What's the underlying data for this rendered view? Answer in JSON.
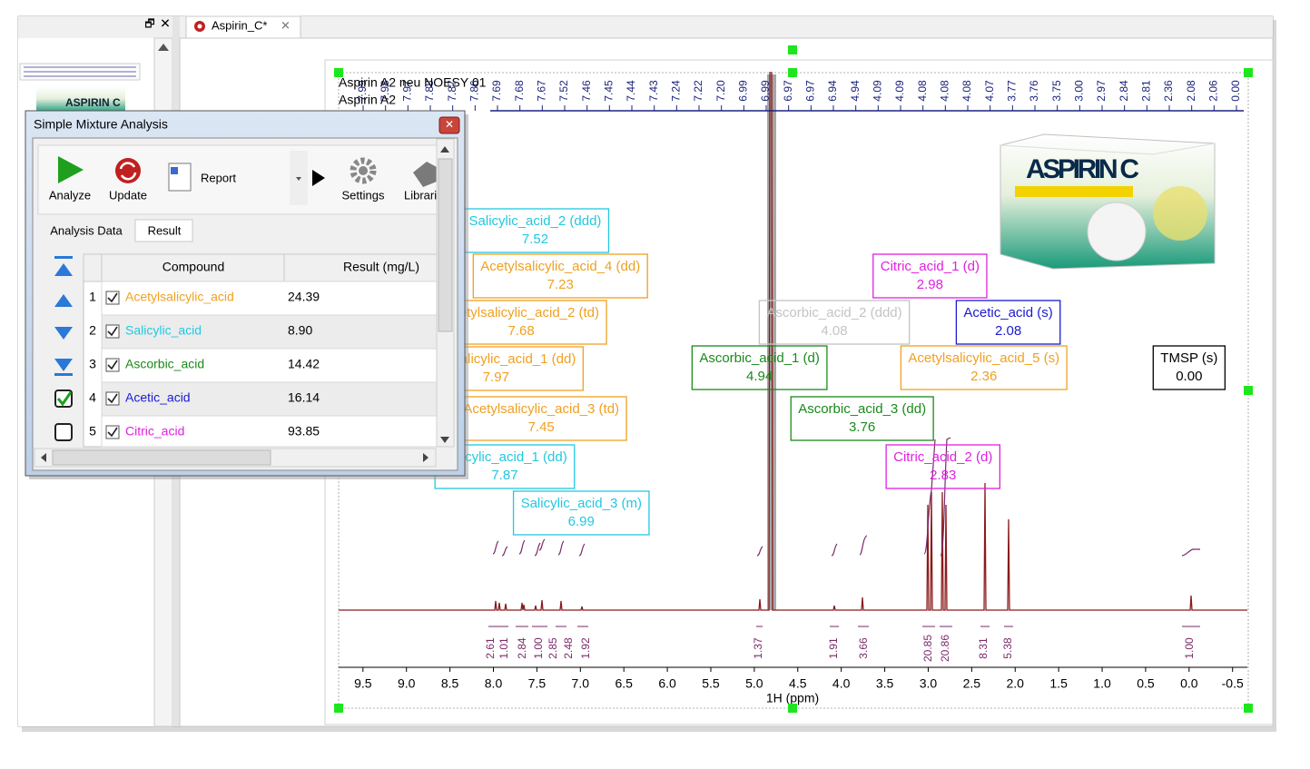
{
  "window": {
    "tab": "Aspirin_C*"
  },
  "dialog": {
    "title": "Simple Mixture Analysis",
    "toolbar": [
      "Analyze",
      "Update",
      "Report",
      "Settings",
      "Librari"
    ],
    "tabs": [
      "Analysis Data",
      "Result"
    ],
    "table": {
      "columns": [
        "Compound",
        "Result (mg/L)"
      ],
      "rows": [
        [
          "1",
          "Acetylsalicylic_acid",
          "24.39"
        ],
        [
          "2",
          "Salicylic_acid",
          "8.90"
        ],
        [
          "3",
          "Ascorbic_acid",
          "14.42"
        ],
        [
          "4",
          "Acetic_acid",
          "16.14"
        ],
        [
          "5",
          "Citric_acid",
          "93.85"
        ]
      ],
      "compound_colors": [
        "#f0a020",
        "#22c8e0",
        "#1a8a1a",
        "#1a1ad0",
        "#e020e0"
      ]
    }
  },
  "spectrum": {
    "title_lines": [
      "Aspirin A2 neu NOESY 01",
      "Aspirin A2"
    ],
    "peak_labels": [
      "7.99",
      "7.98",
      "7.97",
      "7.88",
      "7.87",
      "7.86",
      "7.69",
      "7.68",
      "7.67",
      "7.52",
      "7.46",
      "7.45",
      "7.44",
      "7.43",
      "7.24",
      "7.22",
      "7.20",
      "6.99",
      "6.99",
      "6.97",
      "6.97",
      "6.94",
      "4.94",
      "4.09",
      "4.09",
      "4.08",
      "4.08",
      "4.08",
      "4.07",
      "3.77",
      "3.76",
      "3.75",
      "3.00",
      "2.97",
      "2.84",
      "2.81",
      "2.36",
      "2.08",
      "2.06",
      "0.00"
    ],
    "annotations": [
      {
        "name": "Salicylic_acid_2 (ddd)",
        "shift": "7.52",
        "color": "#22c8e0"
      },
      {
        "name": "Acetylsalicylic_acid_4 (dd)",
        "shift": "7.23",
        "color": "#f0a020"
      },
      {
        "name": "Acetylsalicylic_acid_2 (td)",
        "shift": "7.68",
        "color": "#f0a020"
      },
      {
        "name": "Acetylsalicylic_acid_1 (dd)",
        "shift": "7.97",
        "color": "#f0a020"
      },
      {
        "name": "Acetylsalicylic_acid_3 (td)",
        "shift": "7.45",
        "color": "#f0a020"
      },
      {
        "name": "Salicylic_acid_1 (dd)",
        "shift": "7.87",
        "color": "#22c8e0"
      },
      {
        "name": "Salicylic_acid_3 (m)",
        "shift": "6.99",
        "color": "#22c8e0"
      },
      {
        "name": "Citric_acid_1 (d)",
        "shift": "2.98",
        "color": "#e020e0"
      },
      {
        "name": "Ascorbic_acid_2 (ddd)",
        "shift": "4.08",
        "color": "#c4c4c4"
      },
      {
        "name": "Acetic_acid (s)",
        "shift": "2.08",
        "color": "#1a1ad0"
      },
      {
        "name": "Ascorbic_acid_1 (d)",
        "shift": "4.94",
        "color": "#1a8a1a"
      },
      {
        "name": "Acetylsalicylic_acid_5 (s)",
        "shift": "2.36",
        "color": "#f0a020"
      },
      {
        "name": "TMSP (s)",
        "shift": "0.00",
        "color": "#000000"
      },
      {
        "name": "Ascorbic_acid_3 (dd)",
        "shift": "3.76",
        "color": "#1a8a1a"
      },
      {
        "name": "Citric_acid_2 (d)",
        "shift": "2.83",
        "color": "#e020e0"
      }
    ],
    "integrals": [
      "2.61",
      "1.01",
      "2.84",
      "1.00",
      "2.85",
      "2.48",
      "1.92",
      "1.37",
      "1.91",
      "3.66",
      "20.85",
      "20.86",
      "8.31",
      "5.38",
      "1.00"
    ],
    "xlim": [
      9.78,
      -0.67
    ],
    "xticks": [
      {
        "value": 9.5,
        "label": "9.5"
      },
      {
        "value": 9,
        "label": "9.0"
      },
      8.5,
      {
        "value": 8,
        "label": "8.0"
      },
      7.5,
      {
        "value": 7,
        "label": "7.0"
      },
      6.5,
      {
        "value": 6,
        "label": "6.0"
      },
      5.5,
      {
        "value": 5,
        "label": "5.0"
      },
      4.5,
      {
        "value": 4,
        "label": "4.0"
      },
      3.5,
      {
        "value": 3,
        "label": "3.0"
      },
      2.5,
      {
        "value": 2,
        "label": "2.0"
      },
      1.5,
      {
        "value": 1,
        "label": "1.0"
      },
      0.5,
      {
        "value": 0,
        "label": "0.0"
      },
      -0.5
    ],
    "xlabel": "1H (ppm)",
    "product_image_text": "ASPIRIN C"
  }
}
